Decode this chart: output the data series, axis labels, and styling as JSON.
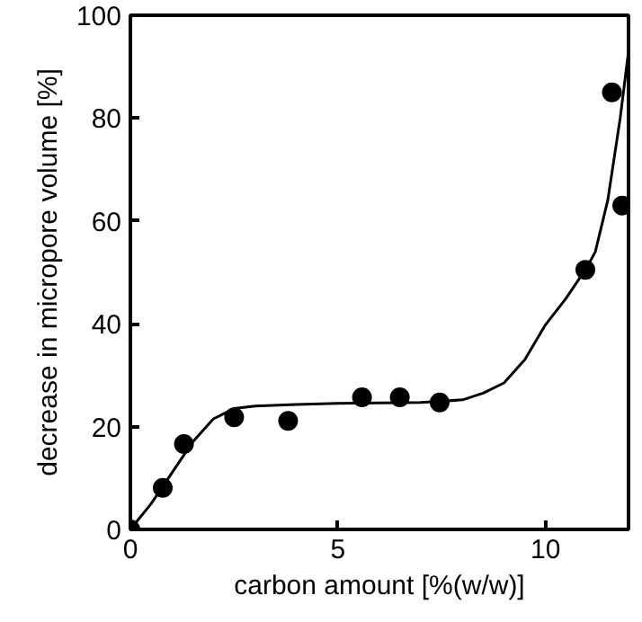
{
  "chart_data": {
    "type": "scatter",
    "xlabel": "carbon amount [%(w/w)]",
    "ylabel": "decrease in micropore volume [%]",
    "xlim": [
      0,
      12
    ],
    "ylim": [
      0,
      100
    ],
    "xticks": [
      0,
      5,
      10
    ],
    "yticks": [
      0,
      20,
      40,
      60,
      80,
      100
    ],
    "grid": false,
    "marker": "circle",
    "series": [
      {
        "color": "#000000",
        "x": [
          0,
          0.78,
          1.29,
          2.5,
          3.8,
          5.58,
          6.49,
          7.45,
          10.96,
          11.6,
          11.85
        ],
        "values": [
          0,
          8.1,
          16.6,
          21.8,
          21.1,
          25.7,
          25.7,
          24.7,
          50.5,
          85,
          63
        ]
      },
      {
        "type": "line",
        "color": "#000000",
        "marker": "none",
        "line_style": "solid",
        "x": [
          0,
          0.5,
          1,
          1.5,
          2,
          2.5,
          3,
          4,
          5,
          6,
          7,
          8,
          8.5,
          9,
          9.5,
          10,
          10.5,
          11,
          11.2,
          11.5,
          11.8,
          12
        ],
        "values": [
          0,
          5,
          11,
          17,
          21.5,
          23.5,
          24,
          24.3,
          24.5,
          24.6,
          24.7,
          25.2,
          26.5,
          28.5,
          33,
          39.8,
          45,
          51,
          54,
          64,
          80,
          93
        ]
      }
    ]
  }
}
